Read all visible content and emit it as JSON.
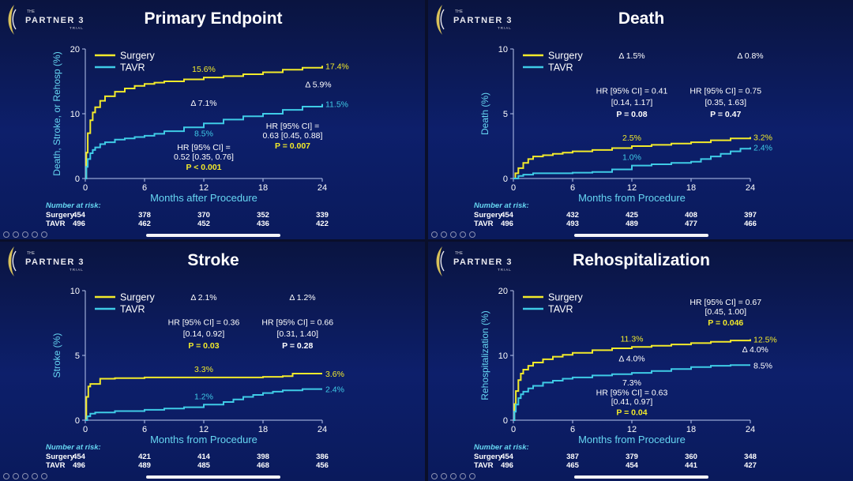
{
  "logo": {
    "the": "THE",
    "word": "PARTNER 3",
    "trial": "TRIAL"
  },
  "colors": {
    "surgery": "#f2ea2b",
    "tavr": "#3fcbe6",
    "axis_text": "#66d6f2",
    "text": "#ffffff"
  },
  "risk_header": "Number at risk:",
  "chart_data": [
    {
      "type": "line",
      "title": "Primary Endpoint",
      "ylabel": "Death, Stroke, or Rehosp (%)",
      "xlabel": "Months after Procedure",
      "ylim": [
        0,
        20
      ],
      "yticks": [
        0,
        10,
        20
      ],
      "ytick_labels": [
        "0",
        "10",
        "20"
      ],
      "xlim": [
        0,
        24
      ],
      "xticks": [
        0,
        6,
        12,
        18,
        24
      ],
      "xtick_labels": [
        "0",
        "6",
        "12",
        "18",
        "24"
      ],
      "legend": [
        "Surgery",
        "TAVR"
      ],
      "series": [
        {
          "name": "Surgery",
          "color": "#f2ea2b",
          "x": [
            0,
            0.1,
            0.25,
            0.5,
            0.75,
            1,
            1.5,
            2,
            3,
            4,
            5,
            6,
            7,
            8,
            10,
            12,
            14,
            16,
            18,
            20,
            22,
            24
          ],
          "y": [
            0,
            4,
            7,
            9,
            10.2,
            11,
            12,
            12.7,
            13.4,
            13.9,
            14.3,
            14.6,
            14.8,
            15,
            15.3,
            15.6,
            15.8,
            16.1,
            16.4,
            16.8,
            17.1,
            17.4
          ]
        },
        {
          "name": "TAVR",
          "color": "#3fcbe6",
          "x": [
            0,
            0.1,
            0.25,
            0.5,
            0.75,
            1,
            1.5,
            2,
            3,
            4,
            5,
            6,
            7,
            8,
            10,
            12,
            14,
            16,
            18,
            20,
            22,
            24
          ],
          "y": [
            0,
            1.8,
            3,
            3.9,
            4.4,
            4.8,
            5.3,
            5.6,
            6,
            6.2,
            6.4,
            6.6,
            6.9,
            7.3,
            7.9,
            8.5,
            9.1,
            9.6,
            10,
            10.6,
            11.1,
            11.5
          ]
        }
      ],
      "annotations": [
        {
          "text": "15.6%",
          "x": 12,
          "y": 15.6,
          "role": "surgery",
          "pos": "above"
        },
        {
          "text": "17.4%",
          "x": 24,
          "y": 17.4,
          "role": "surgery",
          "pos": "end"
        },
        {
          "text": "8.5%",
          "x": 12,
          "y": 8.5,
          "role": "tavr",
          "pos": "below"
        },
        {
          "text": "11.5%",
          "x": 24,
          "y": 11.5,
          "role": "tavr",
          "pos": "end"
        },
        {
          "text": "Δ 7.1%",
          "x": 12,
          "y": 11.7,
          "role": "white",
          "pos": "center"
        },
        {
          "text": "Δ 5.9%",
          "x": 23.6,
          "y": 14.6,
          "role": "white",
          "pos": "center"
        },
        {
          "text": "HR [95% CI] =",
          "x": 12,
          "y": 4.9,
          "role": "white",
          "pos": "center"
        },
        {
          "text": "0.52 [0.35, 0.76]",
          "x": 12,
          "y": 3.4,
          "role": "white",
          "pos": "center"
        },
        {
          "text": "P < 0.001",
          "x": 12,
          "y": 1.8,
          "role": "yellow-bold",
          "pos": "center"
        },
        {
          "text": "HR [95% CI] =",
          "x": 21,
          "y": 8.2,
          "role": "white",
          "pos": "center"
        },
        {
          "text": "0.63 [0.45, 0.88]",
          "x": 21,
          "y": 6.7,
          "role": "white",
          "pos": "center"
        },
        {
          "text": "P = 0.007",
          "x": 21,
          "y": 5.1,
          "role": "yellow-bold",
          "pos": "center"
        }
      ],
      "risk": {
        "months": [
          0,
          6,
          12,
          18,
          24
        ],
        "rows": [
          {
            "label": "Surgery",
            "values": [
              "454",
              "378",
              "370",
              "352",
              "339"
            ]
          },
          {
            "label": "TAVR",
            "values": [
              "496",
              "462",
              "452",
              "436",
              "422"
            ]
          }
        ]
      }
    },
    {
      "type": "line",
      "title": "Death",
      "ylabel": "Death (%)",
      "xlabel": "Months from Procedure",
      "ylim": [
        0,
        10
      ],
      "yticks": [
        0,
        5,
        10
      ],
      "ytick_labels": [
        "0",
        "5",
        "10"
      ],
      "xlim": [
        0,
        24
      ],
      "xticks": [
        0,
        6,
        12,
        18,
        24
      ],
      "xtick_labels": [
        "0",
        "6",
        "12",
        "18",
        "24"
      ],
      "legend": [
        "Surgery",
        "TAVR"
      ],
      "series": [
        {
          "name": "Surgery",
          "color": "#f2ea2b",
          "x": [
            0,
            0.2,
            0.5,
            1,
            1.5,
            2,
            3,
            4,
            5,
            6,
            8,
            10,
            12,
            14,
            16,
            18,
            20,
            22,
            24
          ],
          "y": [
            0,
            0.4,
            0.8,
            1.2,
            1.5,
            1.7,
            1.8,
            1.9,
            2,
            2.1,
            2.2,
            2.35,
            2.5,
            2.6,
            2.7,
            2.8,
            2.95,
            3.1,
            3.2
          ]
        },
        {
          "name": "TAVR",
          "color": "#3fcbe6",
          "x": [
            0,
            0.5,
            1,
            2,
            4,
            6,
            8,
            10,
            12,
            14,
            16,
            18,
            19,
            20,
            21,
            22,
            23,
            24
          ],
          "y": [
            0,
            0.2,
            0.3,
            0.4,
            0.4,
            0.45,
            0.5,
            0.7,
            1,
            1.1,
            1.2,
            1.3,
            1.5,
            1.7,
            1.9,
            2.1,
            2.3,
            2.4
          ]
        }
      ],
      "annotations": [
        {
          "text": "2.5%",
          "x": 12,
          "y": 2.5,
          "role": "surgery",
          "pos": "above"
        },
        {
          "text": "3.2%",
          "x": 24,
          "y": 3.2,
          "role": "surgery",
          "pos": "end"
        },
        {
          "text": "1.0%",
          "x": 12,
          "y": 1,
          "role": "tavr",
          "pos": "above"
        },
        {
          "text": "2.4%",
          "x": 24,
          "y": 2.4,
          "role": "tavr",
          "pos": "end"
        },
        {
          "text": "Δ 1.5%",
          "x": 12,
          "y": 9.5,
          "role": "white",
          "pos": "center"
        },
        {
          "text": "Δ 0.8%",
          "x": 24,
          "y": 9.5,
          "role": "white",
          "pos": "center"
        },
        {
          "text": "HR [95% CI] = 0.41",
          "x": 12,
          "y": 6.8,
          "role": "white",
          "pos": "center"
        },
        {
          "text": "[0.14, 1.17]",
          "x": 12,
          "y": 5.9,
          "role": "white",
          "pos": "center"
        },
        {
          "text": "P = 0.08",
          "x": 12,
          "y": 5.0,
          "role": "white-bold",
          "pos": "center"
        },
        {
          "text": "HR [95% CI] = 0.75",
          "x": 21.5,
          "y": 6.8,
          "role": "white",
          "pos": "center"
        },
        {
          "text": "[0.35, 1.63]",
          "x": 21.5,
          "y": 5.9,
          "role": "white",
          "pos": "center"
        },
        {
          "text": "P = 0.47",
          "x": 21.5,
          "y": 5.0,
          "role": "white-bold",
          "pos": "center"
        }
      ],
      "risk": {
        "months": [
          0,
          6,
          12,
          18,
          24
        ],
        "rows": [
          {
            "label": "Surgery",
            "values": [
              "454",
              "432",
              "425",
              "408",
              "397"
            ]
          },
          {
            "label": "TAVR",
            "values": [
              "496",
              "493",
              "489",
              "477",
              "466"
            ]
          }
        ]
      }
    },
    {
      "type": "line",
      "title": "Stroke",
      "ylabel": "Stroke (%)",
      "xlabel": "Months from Procedure",
      "ylim": [
        0,
        10
      ],
      "yticks": [
        0,
        5,
        10
      ],
      "ytick_labels": [
        "0",
        "5",
        "10"
      ],
      "xlim": [
        0,
        24
      ],
      "xticks": [
        0,
        6,
        12,
        18,
        24
      ],
      "xtick_labels": [
        "0",
        "6",
        "12",
        "18",
        "24"
      ],
      "legend": [
        "Surgery",
        "TAVR"
      ],
      "series": [
        {
          "name": "Surgery",
          "color": "#f2ea2b",
          "x": [
            0,
            0.1,
            0.3,
            0.5,
            1,
            1.5,
            3,
            6,
            9,
            12,
            15,
            18,
            20,
            21,
            24
          ],
          "y": [
            0,
            1.8,
            2.6,
            2.8,
            2.8,
            3.2,
            3.25,
            3.3,
            3.3,
            3.3,
            3.3,
            3.35,
            3.4,
            3.6,
            3.6
          ]
        },
        {
          "name": "TAVR",
          "color": "#3fcbe6",
          "x": [
            0,
            0.2,
            0.5,
            1,
            3,
            6,
            8,
            10,
            12,
            14,
            15,
            16,
            17,
            18,
            19,
            20,
            22,
            24
          ],
          "y": [
            0,
            0.3,
            0.5,
            0.6,
            0.7,
            0.8,
            0.9,
            1.0,
            1.2,
            1.4,
            1.6,
            1.8,
            1.95,
            2.1,
            2.2,
            2.3,
            2.4,
            2.4
          ]
        }
      ],
      "annotations": [
        {
          "text": "3.3%",
          "x": 12,
          "y": 3.3,
          "role": "surgery",
          "pos": "above"
        },
        {
          "text": "3.6%",
          "x": 24,
          "y": 3.6,
          "role": "surgery",
          "pos": "end"
        },
        {
          "text": "1.2%",
          "x": 12,
          "y": 1.2,
          "role": "tavr",
          "pos": "above"
        },
        {
          "text": "2.4%",
          "x": 24,
          "y": 2.4,
          "role": "tavr",
          "pos": "end"
        },
        {
          "text": "Δ 2.1%",
          "x": 12,
          "y": 9.5,
          "role": "white",
          "pos": "center"
        },
        {
          "text": "Δ 1.2%",
          "x": 22,
          "y": 9.5,
          "role": "white",
          "pos": "center"
        },
        {
          "text": "HR [95% CI] = 0.36",
          "x": 12,
          "y": 7.6,
          "role": "white",
          "pos": "center"
        },
        {
          "text": "[0.14, 0.92]",
          "x": 12,
          "y": 6.7,
          "role": "white",
          "pos": "center"
        },
        {
          "text": "P = 0.03",
          "x": 12,
          "y": 5.8,
          "role": "yellow-bold",
          "pos": "center"
        },
        {
          "text": "HR [95% CI] = 0.66",
          "x": 21.5,
          "y": 7.6,
          "role": "white",
          "pos": "center"
        },
        {
          "text": "[0.31, 1.40]",
          "x": 21.5,
          "y": 6.7,
          "role": "white",
          "pos": "center"
        },
        {
          "text": "P = 0.28",
          "x": 21.5,
          "y": 5.8,
          "role": "white-bold",
          "pos": "center"
        }
      ],
      "risk": {
        "months": [
          0,
          6,
          12,
          18,
          24
        ],
        "rows": [
          {
            "label": "Surgery",
            "values": [
              "454",
              "421",
              "414",
              "398",
              "386"
            ]
          },
          {
            "label": "TAVR",
            "values": [
              "496",
              "489",
              "485",
              "468",
              "456"
            ]
          }
        ]
      }
    },
    {
      "type": "line",
      "title": "Rehospitalization",
      "ylabel": "Rehospitalization (%)",
      "xlabel": "Months from Procedure",
      "ylim": [
        0,
        20
      ],
      "yticks": [
        0,
        10,
        20
      ],
      "ytick_labels": [
        "0",
        "10",
        "20"
      ],
      "xlim": [
        0,
        24
      ],
      "xticks": [
        0,
        6,
        12,
        18,
        24
      ],
      "xtick_labels": [
        "0",
        "6",
        "12",
        "18",
        "24"
      ],
      "legend": [
        "Surgery",
        "TAVR"
      ],
      "series": [
        {
          "name": "Surgery",
          "color": "#f2ea2b",
          "x": [
            0,
            0.1,
            0.25,
            0.5,
            0.75,
            1,
            1.5,
            2,
            3,
            4,
            5,
            6,
            8,
            10,
            12,
            14,
            16,
            18,
            20,
            22,
            24
          ],
          "y": [
            0,
            2.5,
            4.5,
            6.2,
            7.2,
            7.8,
            8.4,
            8.9,
            9.4,
            9.8,
            10.1,
            10.4,
            10.8,
            11.1,
            11.3,
            11.5,
            11.7,
            11.9,
            12.1,
            12.3,
            12.5
          ]
        },
        {
          "name": "TAVR",
          "color": "#3fcbe6",
          "x": [
            0,
            0.1,
            0.25,
            0.5,
            0.75,
            1,
            1.5,
            2,
            3,
            4,
            5,
            6,
            8,
            10,
            12,
            14,
            16,
            18,
            20,
            22,
            24
          ],
          "y": [
            0,
            1.3,
            2.4,
            3.4,
            4,
            4.4,
            4.9,
            5.3,
            5.8,
            6.1,
            6.4,
            6.6,
            6.9,
            7.1,
            7.3,
            7.6,
            7.9,
            8.2,
            8.4,
            8.5,
            8.5
          ]
        }
      ],
      "annotations": [
        {
          "text": "11.3%",
          "x": 12,
          "y": 11.3,
          "role": "surgery",
          "pos": "above"
        },
        {
          "text": "12.5%",
          "x": 24,
          "y": 12.5,
          "role": "surgery",
          "pos": "end"
        },
        {
          "text": "7.3%",
          "x": 12,
          "y": 7.3,
          "role": "white",
          "pos": "below"
        },
        {
          "text": "8.5%",
          "x": 24,
          "y": 8.5,
          "role": "white",
          "pos": "end"
        },
        {
          "text": "Δ 4.0%",
          "x": 12,
          "y": 9.6,
          "role": "white",
          "pos": "center"
        },
        {
          "text": "Δ 4.0%",
          "x": 24.5,
          "y": 11,
          "role": "white",
          "pos": "center"
        },
        {
          "text": "HR [95% CI] = 0.63",
          "x": 12,
          "y": 4.3,
          "role": "white",
          "pos": "center"
        },
        {
          "text": "[0.41, 0.97]",
          "x": 12,
          "y": 2.9,
          "role": "white",
          "pos": "center"
        },
        {
          "text": "P = 0.04",
          "x": 12,
          "y": 1.3,
          "role": "yellow-bold",
          "pos": "center"
        },
        {
          "text": "HR [95% CI] = 0.67",
          "x": 21.5,
          "y": 18.3,
          "role": "white",
          "pos": "center"
        },
        {
          "text": "[0.45, 1.00]",
          "x": 21.5,
          "y": 16.8,
          "role": "white",
          "pos": "center"
        },
        {
          "text": "P = 0.046",
          "x": 21.5,
          "y": 15.1,
          "role": "yellow-bold",
          "pos": "center"
        }
      ],
      "risk": {
        "months": [
          0,
          6,
          12,
          18,
          24
        ],
        "rows": [
          {
            "label": "Surgery",
            "values": [
              "454",
              "387",
              "379",
              "360",
              "348"
            ]
          },
          {
            "label": "TAVR",
            "values": [
              "496",
              "465",
              "454",
              "441",
              "427"
            ]
          }
        ]
      }
    }
  ]
}
